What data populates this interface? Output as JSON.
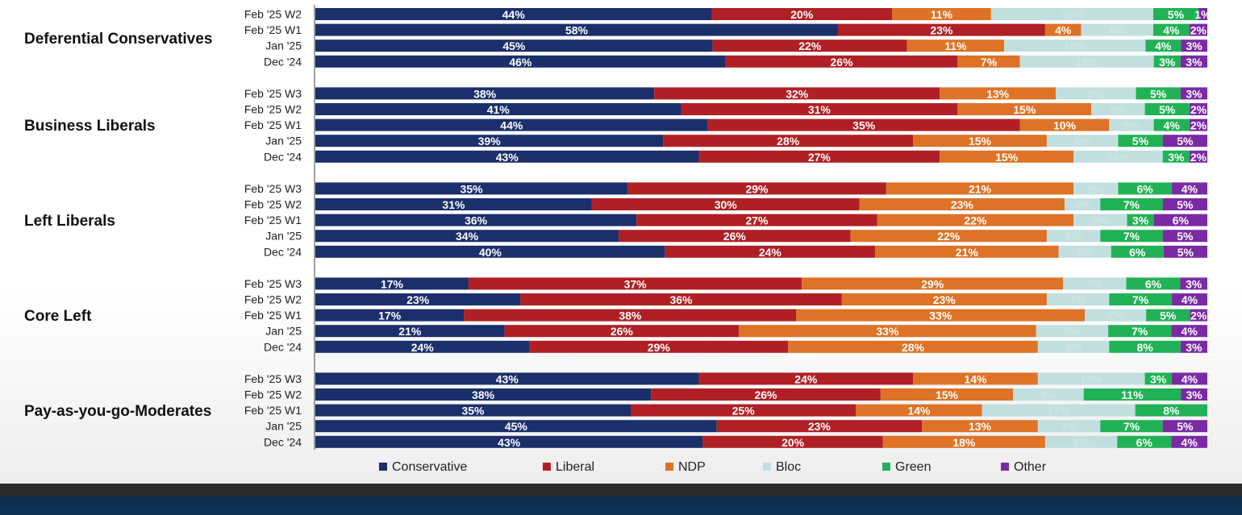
{
  "chart_data": {
    "type": "bar",
    "orientation": "horizontal",
    "stacked": true,
    "normalized_percent": true,
    "legend_position": "bottom",
    "series_names": [
      "Conservative",
      "Liberal",
      "NDP",
      "Bloc",
      "Green",
      "Other"
    ],
    "colors": [
      "#1b2f6b",
      "#b01f24",
      "#de7226",
      "#c2dfe0",
      "#21b255",
      "#7a2aa5"
    ],
    "groups": [
      {
        "name": "Deferential Conservatives",
        "rows": [
          {
            "label": "Feb '25 W2",
            "values": [
              44,
              20,
              11,
              18,
              5,
              1
            ],
            "labels": [
              "44%",
              "20%",
              "11%",
              "18%",
              "5%",
              "1%"
            ]
          },
          {
            "label": "Feb '25 W1",
            "values": [
              58,
              23,
              4,
              8,
              4,
              2
            ],
            "labels": [
              "58%",
              "23%",
              "4%",
              "8%",
              "4%",
              "2%"
            ]
          },
          {
            "label": "Jan '25",
            "values": [
              45,
              22,
              11,
              16,
              4,
              3
            ],
            "labels": [
              "45%",
              "22%",
              "11%",
              "16%",
              "4%",
              "3%"
            ]
          },
          {
            "label": "Dec '24",
            "values": [
              46,
              26,
              7,
              15,
              3,
              3
            ],
            "labels": [
              "46%",
              "26%",
              "7%",
              "15%",
              "3%",
              "3%"
            ]
          }
        ]
      },
      {
        "name": "Business Liberals",
        "rows": [
          {
            "label": "Feb '25 W3",
            "values": [
              38,
              32,
              13,
              9,
              5,
              3
            ],
            "labels": [
              "38%",
              "32%",
              "13%",
              "9%",
              "5%",
              "3%"
            ]
          },
          {
            "label": "Feb '25 W2",
            "values": [
              41,
              31,
              15,
              6,
              5,
              2
            ],
            "labels": [
              "41%",
              "31%",
              "15%",
              "6%",
              "5%",
              "2%"
            ]
          },
          {
            "label": "Feb '25 W1",
            "values": [
              44,
              35,
              10,
              5,
              4,
              2
            ],
            "labels": [
              "44%",
              "35%",
              "10%",
              "5%",
              "4%",
              "2%"
            ]
          },
          {
            "label": "Jan '25",
            "values": [
              39,
              28,
              15,
              8,
              5,
              5
            ],
            "labels": [
              "39%",
              "28%",
              "15%",
              "8%",
              "5%",
              "5%"
            ]
          },
          {
            "label": "Dec '24",
            "values": [
              43,
              27,
              15,
              10,
              3,
              2
            ],
            "labels": [
              "43%",
              "27%",
              "15%",
              "10%",
              "3%",
              "2%"
            ]
          }
        ]
      },
      {
        "name": "Left Liberals",
        "rows": [
          {
            "label": "Feb '25 W3",
            "values": [
              35,
              29,
              21,
              5,
              6,
              4
            ],
            "labels": [
              "35%",
              "29%",
              "21%",
              "5%",
              "6%",
              "4%"
            ]
          },
          {
            "label": "Feb '25 W2",
            "values": [
              31,
              30,
              23,
              4,
              7,
              5
            ],
            "labels": [
              "31%",
              "30%",
              "23%",
              "4%",
              "7%",
              "5%"
            ]
          },
          {
            "label": "Feb '25 W1",
            "values": [
              36,
              27,
              22,
              6,
              3,
              6
            ],
            "labels": [
              "36%",
              "27%",
              "22%",
              "6%",
              "3%",
              "6%"
            ]
          },
          {
            "label": "Jan '25",
            "values": [
              34,
              26,
              22,
              6,
              7,
              5
            ],
            "labels": [
              "34%",
              "26%",
              "22%",
              "6%",
              "7%",
              "5%"
            ]
          },
          {
            "label": "Dec '24",
            "values": [
              40,
              24,
              21,
              6,
              6,
              5
            ],
            "labels": [
              "40%",
              "24%",
              "21%",
              "6%",
              "6%",
              "5%"
            ]
          }
        ]
      },
      {
        "name": "Core Left",
        "rows": [
          {
            "label": "Feb '25 W3",
            "values": [
              17,
              37,
              29,
              7,
              6,
              3
            ],
            "labels": [
              "17%",
              "37%",
              "29%",
              "7%",
              "6%",
              "3%"
            ]
          },
          {
            "label": "Feb '25 W2",
            "values": [
              23,
              36,
              23,
              7,
              7,
              4
            ],
            "labels": [
              "23%",
              "36%",
              "23%",
              "7%",
              "7%",
              "4%"
            ]
          },
          {
            "label": "Feb '25 W1",
            "values": [
              17,
              38,
              33,
              7,
              5,
              2
            ],
            "labels": [
              "17%",
              "38%",
              "33%",
              "7%",
              "5%",
              "2%"
            ]
          },
          {
            "label": "Jan '25",
            "values": [
              21,
              26,
              33,
              8,
              7,
              4
            ],
            "labels": [
              "21%",
              "26%",
              "33%",
              "8%",
              "7%",
              "4%"
            ]
          },
          {
            "label": "Dec '24",
            "values": [
              24,
              29,
              28,
              8,
              8,
              3
            ],
            "labels": [
              "24%",
              "29%",
              "28%",
              "8%",
              "8%",
              "3%"
            ]
          }
        ]
      },
      {
        "name": "Pay-as-you-go-Moderates",
        "rows": [
          {
            "label": "Feb '25 W3",
            "values": [
              43,
              24,
              14,
              12,
              3,
              4
            ],
            "labels": [
              "43%",
              "24%",
              "14%",
              "12%",
              "3%",
              "4%"
            ]
          },
          {
            "label": "Feb '25 W2",
            "values": [
              38,
              26,
              15,
              8,
              11,
              3
            ],
            "labels": [
              "38%",
              "26%",
              "15%",
              "8%",
              "11%",
              "3%"
            ]
          },
          {
            "label": "Feb '25 W1",
            "values": [
              35,
              25,
              14,
              17,
              8,
              0
            ],
            "labels": [
              "35%",
              "25%",
              "14%",
              "17%",
              "8%",
              "0%"
            ]
          },
          {
            "label": "Jan '25",
            "values": [
              45,
              23,
              13,
              7,
              7,
              5
            ],
            "labels": [
              "45%",
              "23%",
              "13%",
              "7%",
              "7%",
              "5%"
            ]
          },
          {
            "label": "Dec '24",
            "values": [
              43,
              20,
              18,
              8,
              6,
              4
            ],
            "labels": [
              "43%",
              "20%",
              "18%",
              "8%",
              "6%",
              "4%"
            ]
          }
        ]
      }
    ]
  }
}
